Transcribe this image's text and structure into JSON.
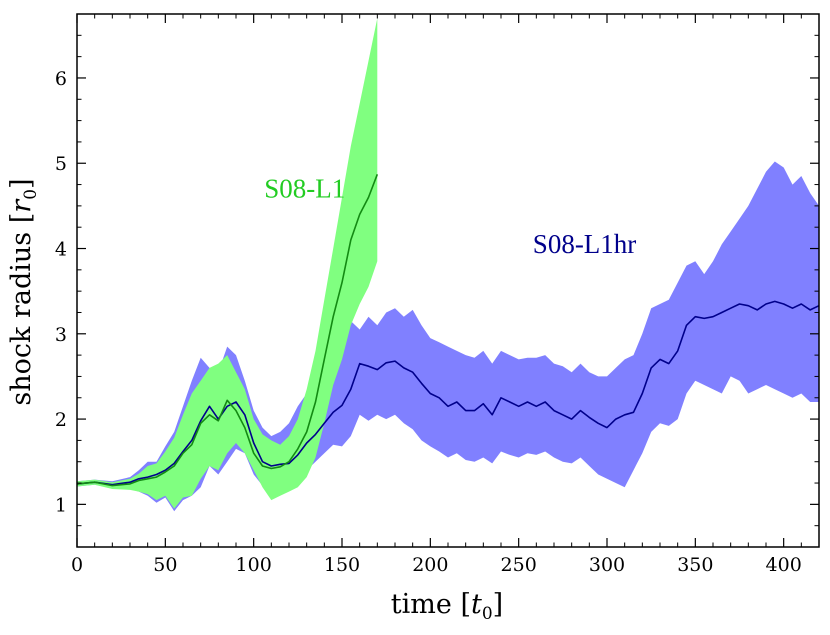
{
  "chart_data": {
    "type": "line",
    "title": "",
    "xlabel": "time",
    "xlabel_unit": "t",
    "xlabel_unit_sub": "0",
    "ylabel": "shock radius",
    "ylabel_unit": "r",
    "ylabel_unit_sub": "0",
    "xlim": [
      0,
      420
    ],
    "ylim": [
      0.5,
      6.75
    ],
    "xticks": [
      0,
      50,
      100,
      150,
      200,
      250,
      300,
      350,
      400
    ],
    "yticks": [
      1,
      2,
      3,
      4,
      5,
      6
    ],
    "legend": "inline labels",
    "series": [
      {
        "name": "S08-L1hr",
        "color": "#00008b",
        "band_color": "#8080ff",
        "label_at": [
          258,
          3.95
        ],
        "x": [
          0,
          10,
          20,
          30,
          35,
          40,
          45,
          50,
          55,
          60,
          65,
          70,
          75,
          80,
          85,
          90,
          95,
          100,
          105,
          110,
          115,
          120,
          125,
          130,
          135,
          140,
          145,
          150,
          155,
          160,
          165,
          170,
          175,
          180,
          185,
          190,
          195,
          200,
          205,
          210,
          215,
          220,
          225,
          230,
          235,
          240,
          245,
          250,
          255,
          260,
          265,
          270,
          275,
          280,
          285,
          290,
          295,
          300,
          305,
          310,
          315,
          320,
          325,
          330,
          335,
          340,
          345,
          350,
          355,
          360,
          365,
          370,
          375,
          380,
          385,
          390,
          395,
          400,
          405,
          410,
          415,
          420
        ],
        "y": [
          1.24,
          1.26,
          1.23,
          1.26,
          1.3,
          1.32,
          1.35,
          1.4,
          1.48,
          1.62,
          1.75,
          1.98,
          2.15,
          2.0,
          2.15,
          2.2,
          2.05,
          1.72,
          1.5,
          1.45,
          1.47,
          1.48,
          1.58,
          1.72,
          1.82,
          1.95,
          2.08,
          2.16,
          2.35,
          2.65,
          2.62,
          2.58,
          2.66,
          2.68,
          2.6,
          2.55,
          2.42,
          2.3,
          2.25,
          2.15,
          2.2,
          2.1,
          2.1,
          2.18,
          2.05,
          2.25,
          2.2,
          2.15,
          2.2,
          2.15,
          2.2,
          2.1,
          2.05,
          2.0,
          2.1,
          2.02,
          1.95,
          1.9,
          2.0,
          2.05,
          2.08,
          2.3,
          2.6,
          2.7,
          2.65,
          2.8,
          3.1,
          3.2,
          3.18,
          3.2,
          3.25,
          3.3,
          3.35,
          3.33,
          3.28,
          3.35,
          3.38,
          3.35,
          3.3,
          3.35,
          3.28,
          3.33
        ],
        "upper": [
          1.27,
          1.29,
          1.27,
          1.32,
          1.4,
          1.5,
          1.5,
          1.68,
          1.85,
          2.15,
          2.45,
          2.72,
          2.6,
          2.55,
          2.85,
          2.75,
          2.45,
          2.1,
          1.9,
          1.8,
          1.85,
          1.95,
          2.15,
          2.3,
          2.5,
          2.7,
          2.95,
          3.1,
          3.15,
          3.05,
          3.2,
          3.1,
          3.25,
          3.3,
          3.2,
          3.28,
          3.1,
          2.95,
          2.9,
          2.85,
          2.8,
          2.75,
          2.72,
          2.8,
          2.65,
          2.8,
          2.75,
          2.7,
          2.72,
          2.72,
          2.75,
          2.65,
          2.62,
          2.55,
          2.65,
          2.55,
          2.5,
          2.5,
          2.6,
          2.7,
          2.75,
          3.0,
          3.3,
          3.35,
          3.4,
          3.6,
          3.8,
          3.85,
          3.7,
          3.85,
          4.05,
          4.2,
          4.35,
          4.5,
          4.7,
          4.9,
          5.02,
          4.95,
          4.75,
          4.85,
          4.65,
          4.5
        ],
        "lower": [
          1.21,
          1.23,
          1.19,
          1.18,
          1.15,
          1.1,
          1.02,
          1.08,
          0.92,
          1.05,
          1.1,
          1.2,
          1.45,
          1.35,
          1.5,
          1.65,
          1.6,
          1.35,
          1.22,
          1.08,
          1.2,
          1.28,
          1.3,
          1.4,
          1.5,
          1.6,
          1.7,
          1.68,
          1.8,
          2.05,
          1.98,
          2.05,
          2.0,
          2.05,
          1.95,
          1.88,
          1.75,
          1.68,
          1.62,
          1.55,
          1.6,
          1.52,
          1.5,
          1.55,
          1.48,
          1.62,
          1.58,
          1.55,
          1.6,
          1.58,
          1.62,
          1.55,
          1.5,
          1.48,
          1.55,
          1.45,
          1.35,
          1.3,
          1.25,
          1.2,
          1.4,
          1.6,
          1.85,
          1.95,
          1.92,
          2.0,
          2.3,
          2.45,
          2.4,
          2.35,
          2.3,
          2.5,
          2.45,
          2.3,
          2.35,
          2.4,
          2.35,
          2.3,
          2.25,
          2.3,
          2.2,
          2.2
        ]
      },
      {
        "name": "S08-L1",
        "color": "#138a13",
        "band_color": "#80ff80",
        "label_at": [
          106,
          4.6
        ],
        "x": [
          0,
          10,
          20,
          30,
          35,
          40,
          45,
          50,
          55,
          60,
          65,
          70,
          75,
          80,
          85,
          90,
          95,
          100,
          105,
          110,
          115,
          120,
          125,
          130,
          135,
          140,
          145,
          150,
          155,
          160,
          165,
          170
        ],
        "y": [
          1.24,
          1.26,
          1.22,
          1.24,
          1.28,
          1.3,
          1.32,
          1.38,
          1.45,
          1.6,
          1.7,
          1.95,
          2.05,
          1.98,
          2.22,
          2.1,
          1.9,
          1.6,
          1.45,
          1.42,
          1.44,
          1.5,
          1.65,
          1.85,
          2.2,
          2.7,
          3.2,
          3.6,
          4.1,
          4.4,
          4.6,
          4.87
        ],
        "upper": [
          1.27,
          1.29,
          1.26,
          1.3,
          1.36,
          1.45,
          1.48,
          1.62,
          1.78,
          2.05,
          2.3,
          2.45,
          2.6,
          2.65,
          2.75,
          2.55,
          2.35,
          2.0,
          1.82,
          1.75,
          1.7,
          1.8,
          2.0,
          2.35,
          2.8,
          3.4,
          4.0,
          4.6,
          5.2,
          5.7,
          6.2,
          6.7
        ],
        "lower": [
          1.21,
          1.23,
          1.18,
          1.17,
          1.15,
          1.12,
          1.05,
          1.1,
          0.95,
          1.08,
          1.1,
          1.3,
          1.45,
          1.4,
          1.6,
          1.72,
          1.6,
          1.4,
          1.2,
          1.05,
          1.1,
          1.15,
          1.2,
          1.32,
          1.55,
          1.95,
          2.4,
          2.7,
          3.1,
          3.35,
          3.55,
          3.85
        ]
      }
    ]
  }
}
